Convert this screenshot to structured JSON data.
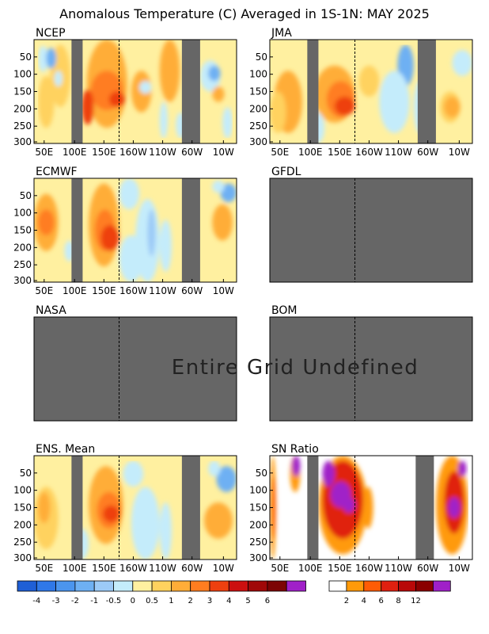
{
  "title": "Anomalous Temperature (C) Averaged in 1S-1N: MAY 2025",
  "undefined_message": "Entire Grid Undefined",
  "colors": {
    "undefined_gray": "#666666",
    "frame": "#000000",
    "dateline": "#000000"
  },
  "axes": {
    "x_ticks": [
      "50E",
      "100E",
      "150E",
      "160W",
      "110W",
      "60W",
      "10W"
    ],
    "y_ticks": [
      "50",
      "100",
      "150",
      "200",
      "250",
      "300"
    ],
    "y_range": [
      0,
      300
    ]
  },
  "chart_data": [
    {
      "type": "heatmap",
      "title": "NCEP",
      "status": "defined",
      "undefined_bands": [
        "~90E-104E",
        "~60W-70W"
      ],
      "hotspot": {
        "lon": "~120E-140E",
        "depth": "~125-150",
        "max_category": "4"
      }
    },
    {
      "type": "heatmap",
      "title": "JMA",
      "status": "defined",
      "undefined_bands": [
        "~90E-100E",
        "~60W-70W"
      ],
      "hotspot": {
        "lon": "~140E-150E",
        "depth": "~150",
        "max_category": "4"
      }
    },
    {
      "type": "heatmap",
      "title": "ECMWF",
      "status": "defined",
      "undefined_bands": [
        "~90E-104E",
        "~60W-70W"
      ],
      "hotspot": {
        "lon": "~135E-145E",
        "depth": "~150",
        "max_category": "4"
      }
    },
    {
      "type": "heatmap",
      "title": "GFDL",
      "status": "undefined"
    },
    {
      "type": "heatmap",
      "title": "NASA",
      "status": "undefined"
    },
    {
      "type": "heatmap",
      "title": "BOM",
      "status": "undefined"
    },
    {
      "type": "heatmap",
      "title": "ENS. Mean",
      "status": "defined",
      "undefined_bands": [
        "~90E-104E",
        "~60W-70W"
      ],
      "hotspot": {
        "lon": "~140E-150E",
        "depth": "~150",
        "max_category": "3"
      }
    },
    {
      "type": "heatmap",
      "title": "SN Ratio",
      "status": "defined",
      "undefined_bands": [
        "~90E-100E",
        "~60W-70W"
      ]
    }
  ],
  "legend_anomaly": {
    "colors": [
      "#1f5fd6",
      "#2f78e8",
      "#4b95ee",
      "#6eb0f3",
      "#9ccaf7",
      "#c4ecfb",
      "#fff0a0",
      "#ffd25e",
      "#ffad38",
      "#ff7d20",
      "#ee4010",
      "#cc1010",
      "#a00808",
      "#7c0404",
      "#a020c8"
    ],
    "labels": [
      "-4",
      "-3",
      "-2",
      "-1",
      "-0.5",
      "0",
      "0.5",
      "1",
      "2",
      "3",
      "4",
      "5",
      "6"
    ]
  },
  "legend_snr": {
    "colors": [
      "#ffffff",
      "#ff9a0a",
      "#ff5c05",
      "#e02010",
      "#b80808",
      "#8a0000",
      "#a020c8"
    ],
    "labels": [
      "2",
      "4",
      "6",
      "8",
      "12"
    ]
  }
}
